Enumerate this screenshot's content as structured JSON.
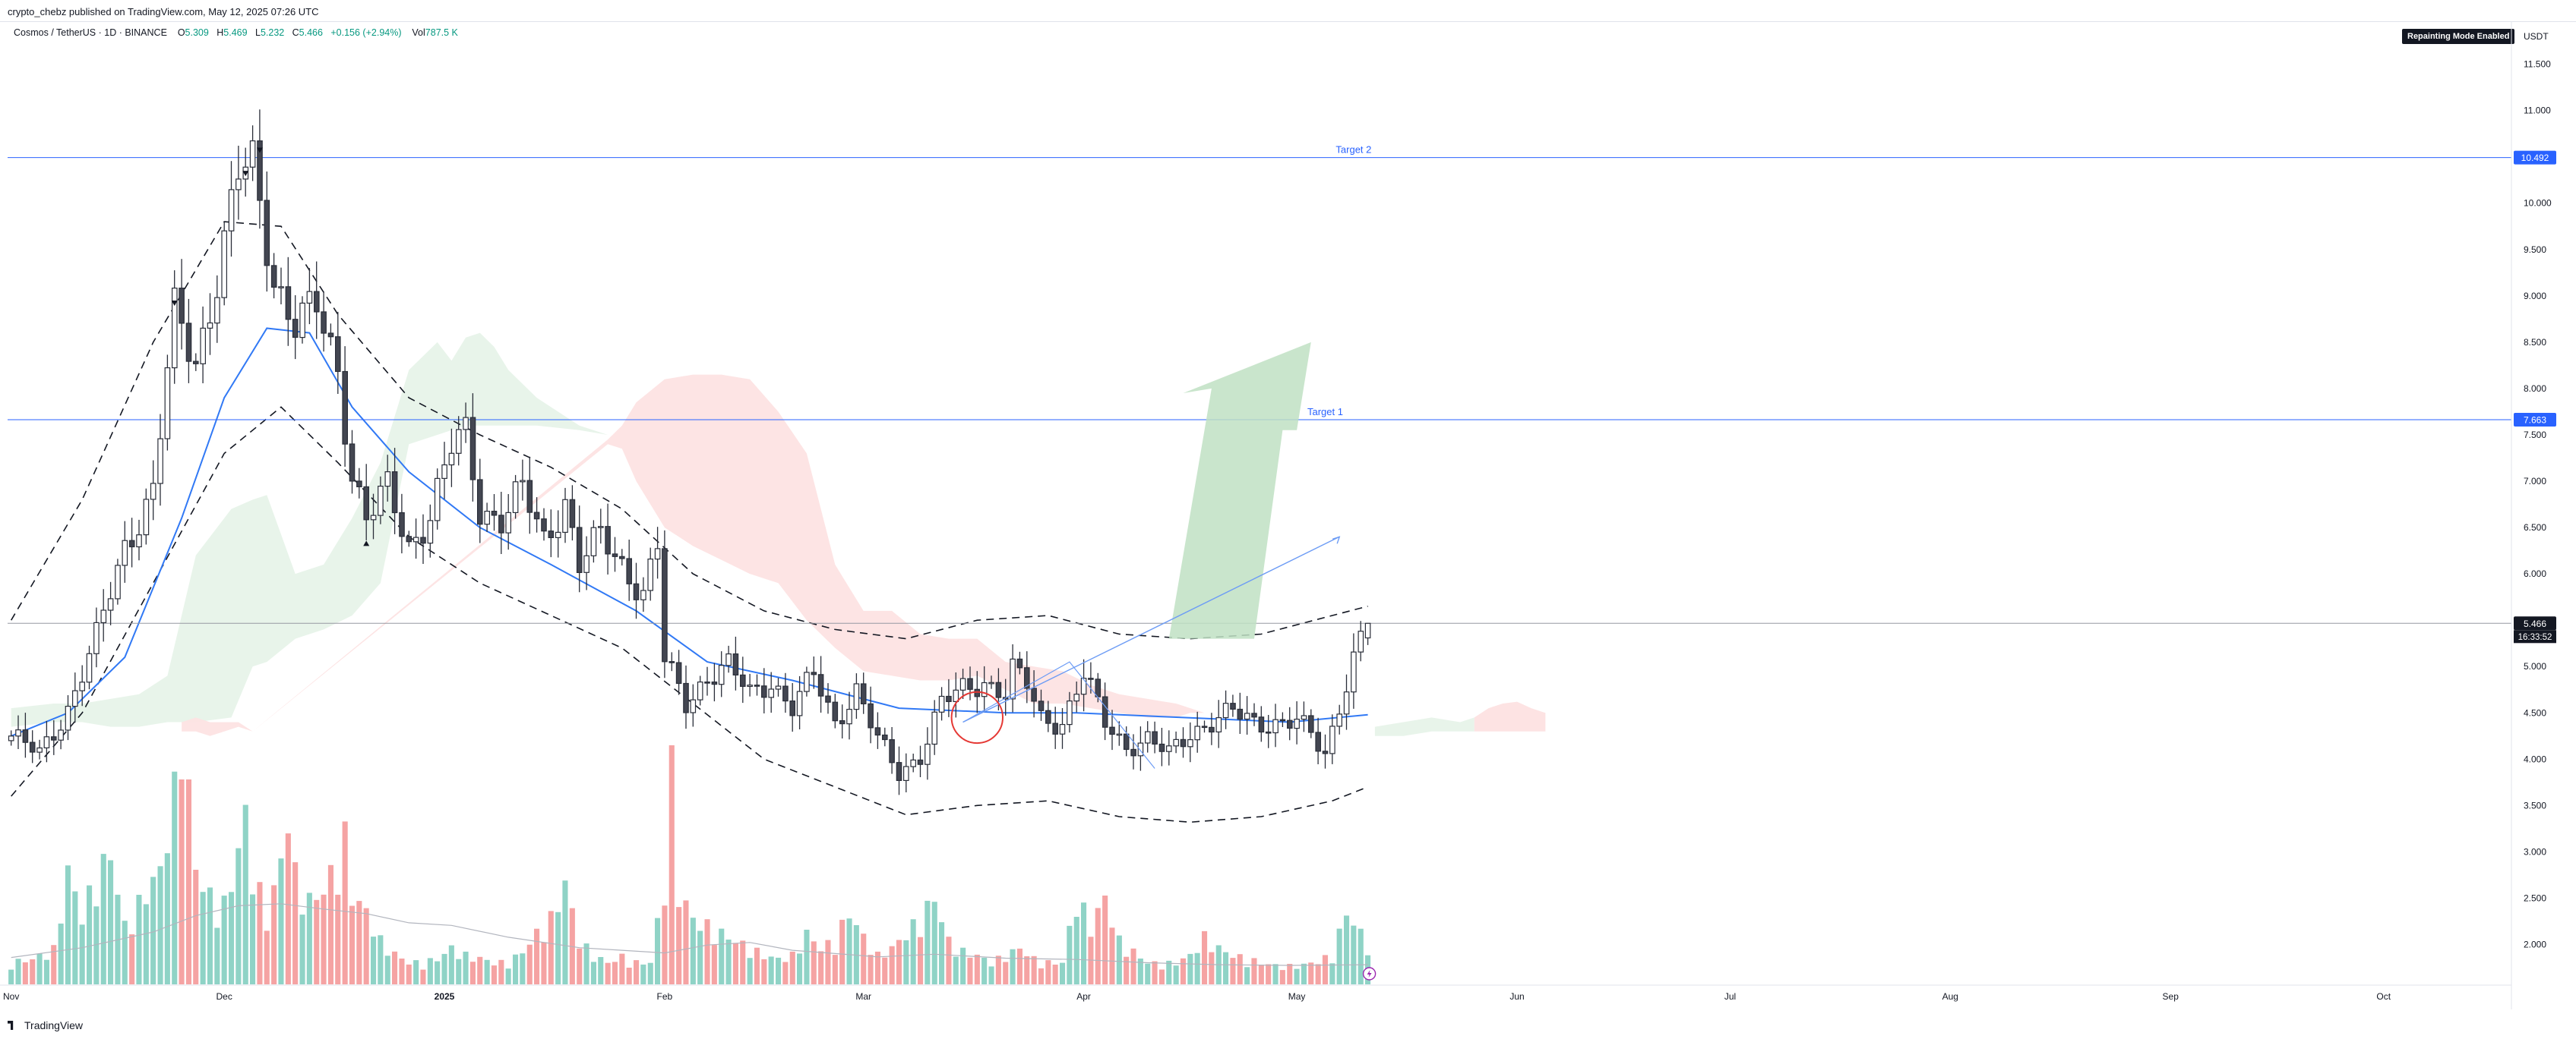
{
  "header": {
    "publisher": "crypto_chebz published on TradingView.com, May 12, 2025 07:26 UTC",
    "symbol": "Cosmos / TetherUS · 1D · BINANCE",
    "ohlc": [
      {
        "k": "O",
        "v": "5.309"
      },
      {
        "k": "H",
        "v": "5.469"
      },
      {
        "k": "L",
        "v": "5.232"
      },
      {
        "k": "C",
        "v": "5.466"
      }
    ],
    "change": "+0.156 (+2.94%)",
    "volume_label": "Vol",
    "volume_value": "787.5 K",
    "repainting_badge": "Repainting Mode Enabled"
  },
  "footer": {
    "brand": "TradingView"
  },
  "chart_data": {
    "type": "candlestick",
    "currency": "USDT",
    "ylim": [
      1.55,
      12.2
    ],
    "y_ticks": [
      "11.500",
      "11.000",
      "10.500",
      "10.000",
      "9.500",
      "9.000",
      "8.500",
      "8.000",
      "7.500",
      "7.000",
      "6.500",
      "6.000",
      "5.500",
      "5.000",
      "4.500",
      "4.000",
      "3.500",
      "3.000",
      "2.500",
      "2.000"
    ],
    "x_ticks": [
      {
        "label": "Nov",
        "day": 0
      },
      {
        "label": "Dec",
        "day": 30
      },
      {
        "label": "2025",
        "day": 61
      },
      {
        "label": "Feb",
        "day": 92
      },
      {
        "label": "Mar",
        "day": 120
      },
      {
        "label": "Apr",
        "day": 151
      },
      {
        "label": "May",
        "day": 181
      },
      {
        "label": "Jun",
        "day": 212
      },
      {
        "label": "Jul",
        "day": 242
      },
      {
        "label": "Aug",
        "day": 273
      },
      {
        "label": "Sep",
        "day": 304
      },
      {
        "label": "Oct",
        "day": 334
      }
    ],
    "xlim": [
      -0.5,
      352
    ],
    "close_anchors": [
      [
        0,
        4.25
      ],
      [
        4,
        4.05
      ],
      [
        8,
        4.55
      ],
      [
        12,
        5.3
      ],
      [
        16,
        6.3
      ],
      [
        20,
        6.9
      ],
      [
        23,
        8.8
      ],
      [
        26,
        8.3
      ],
      [
        29,
        9.2
      ],
      [
        32,
        10.3
      ],
      [
        34,
        10.4
      ],
      [
        37,
        9.2
      ],
      [
        40,
        8.7
      ],
      [
        43,
        8.85
      ],
      [
        46,
        8.2
      ],
      [
        48,
        7.1
      ],
      [
        50,
        6.6
      ],
      [
        53,
        6.9
      ],
      [
        56,
        6.3
      ],
      [
        59,
        6.65
      ],
      [
        62,
        7.35
      ],
      [
        64,
        7.5
      ],
      [
        66,
        6.7
      ],
      [
        69,
        6.6
      ],
      [
        72,
        6.9
      ],
      [
        75,
        6.35
      ],
      [
        78,
        6.8
      ],
      [
        80,
        6.1
      ],
      [
        83,
        6.4
      ],
      [
        86,
        6.1
      ],
      [
        89,
        5.8
      ],
      [
        91,
        6.3
      ],
      [
        92,
        5.05
      ],
      [
        95,
        4.6
      ],
      [
        98,
        4.9
      ],
      [
        101,
        5.0
      ],
      [
        104,
        4.7
      ],
      [
        107,
        4.85
      ],
      [
        110,
        4.55
      ],
      [
        113,
        4.9
      ],
      [
        116,
        4.4
      ],
      [
        119,
        4.75
      ],
      [
        122,
        4.2
      ],
      [
        125,
        3.85
      ],
      [
        128,
        4.05
      ],
      [
        131,
        4.6
      ],
      [
        134,
        4.75
      ],
      [
        137,
        4.85
      ],
      [
        140,
        4.7
      ],
      [
        141,
        4.95
      ],
      [
        143,
        4.8
      ],
      [
        145,
        4.45
      ],
      [
        148,
        4.4
      ],
      [
        151,
        4.9
      ],
      [
        154,
        4.4
      ],
      [
        157,
        4.15
      ],
      [
        160,
        4.2
      ],
      [
        163,
        4.05
      ],
      [
        166,
        4.3
      ],
      [
        169,
        4.4
      ],
      [
        172,
        4.5
      ],
      [
        175,
        4.4
      ],
      [
        178,
        4.4
      ],
      [
        181,
        4.4
      ],
      [
        183,
        4.25
      ],
      [
        185,
        4.05
      ],
      [
        187,
        4.6
      ],
      [
        189,
        5.1
      ],
      [
        190,
        5.3
      ],
      [
        191,
        5.466
      ]
    ],
    "series": [
      {
        "name": "MA(20)",
        "color": "#3179f5",
        "x": [
          0,
          8,
          16,
          24,
          30,
          36,
          42,
          48,
          56,
          66,
          76,
          88,
          98,
          110,
          125,
          140,
          150,
          165,
          180,
          191
        ],
        "y": [
          4.25,
          4.5,
          5.1,
          6.6,
          7.9,
          8.65,
          8.6,
          7.8,
          7.1,
          6.5,
          6.1,
          5.6,
          5.05,
          4.85,
          4.55,
          4.5,
          4.5,
          4.45,
          4.4,
          4.48
        ]
      },
      {
        "name": "Envelope upper",
        "color": "#131722",
        "x": [
          0,
          10,
          20,
          30,
          38,
          46,
          56,
          66,
          76,
          86,
          96,
          106,
          116,
          126,
          136,
          146,
          156,
          166,
          176,
          186,
          191
        ],
        "y": [
          5.5,
          6.8,
          8.5,
          9.8,
          9.75,
          8.8,
          7.9,
          7.5,
          7.15,
          6.7,
          6.0,
          5.6,
          5.4,
          5.3,
          5.5,
          5.55,
          5.35,
          5.3,
          5.35,
          5.55,
          5.65
        ]
      },
      {
        "name": "Envelope lower",
        "color": "#131722",
        "x": [
          0,
          10,
          20,
          30,
          38,
          46,
          56,
          66,
          76,
          86,
          96,
          106,
          116,
          126,
          136,
          146,
          156,
          166,
          176,
          186,
          191
        ],
        "y": [
          3.6,
          4.5,
          5.9,
          7.3,
          7.8,
          7.2,
          6.4,
          5.9,
          5.55,
          5.2,
          4.6,
          4.0,
          3.7,
          3.4,
          3.5,
          3.55,
          3.38,
          3.32,
          3.38,
          3.55,
          3.7
        ]
      },
      {
        "name": "Cloud green upper",
        "color": "#e7f3e9",
        "x": [
          0,
          6,
          10,
          14,
          18,
          22,
          26,
          31,
          34,
          36,
          40,
          44,
          48,
          52,
          56,
          60,
          62,
          64,
          66,
          68,
          70,
          74,
          80,
          84
        ],
        "y": [
          4.55,
          4.6,
          4.6,
          4.65,
          4.7,
          4.9,
          6.2,
          6.7,
          6.8,
          6.85,
          6.0,
          6.1,
          6.6,
          7.2,
          8.2,
          8.5,
          8.3,
          8.55,
          8.6,
          8.45,
          8.2,
          7.9,
          7.6,
          7.5
        ]
      },
      {
        "name": "Cloud green lower",
        "color": "#e7f3e9",
        "x": [
          0,
          6,
          10,
          14,
          18,
          22,
          26,
          31,
          34,
          36,
          40,
          44,
          48,
          52,
          56,
          60,
          62,
          64,
          66,
          68,
          70,
          74,
          80,
          84
        ],
        "y": [
          4.35,
          4.4,
          4.4,
          4.35,
          4.35,
          4.4,
          4.4,
          4.45,
          5.0,
          5.05,
          5.3,
          5.4,
          5.55,
          5.9,
          7.4,
          7.5,
          7.55,
          7.6,
          7.6,
          7.6,
          7.6,
          7.6,
          7.55,
          7.5
        ]
      },
      {
        "name": "Cloud red upper",
        "color": "#fde3e3",
        "x": [
          24,
          26,
          28,
          30,
          32,
          34,
          84,
          86,
          88,
          92,
          96,
          100,
          104,
          108,
          112,
          116,
          120,
          124,
          128,
          132,
          136,
          140,
          144,
          148,
          152,
          156,
          160,
          164,
          166,
          168
        ],
        "y": [
          4.4,
          4.45,
          4.4,
          4.4,
          4.4,
          4.3,
          7.45,
          7.6,
          7.85,
          8.1,
          8.15,
          8.15,
          8.1,
          7.75,
          7.3,
          6.1,
          5.6,
          5.6,
          5.35,
          5.3,
          5.3,
          5.05,
          5.0,
          4.95,
          4.8,
          4.7,
          4.65,
          4.6,
          4.55,
          4.5
        ]
      },
      {
        "name": "Cloud red lower",
        "color": "#fde3e3",
        "x": [
          24,
          26,
          28,
          30,
          32,
          34,
          84,
          86,
          88,
          92,
          96,
          100,
          104,
          108,
          112,
          116,
          120,
          124,
          128,
          132,
          136,
          140,
          144,
          148,
          152,
          156,
          160,
          164,
          166,
          168
        ],
        "y": [
          4.3,
          4.3,
          4.25,
          4.3,
          4.35,
          4.3,
          7.4,
          7.35,
          7.0,
          6.5,
          6.3,
          6.15,
          6.0,
          5.9,
          5.5,
          5.2,
          4.95,
          4.9,
          4.85,
          4.85,
          4.9,
          4.75,
          4.6,
          4.6,
          4.55,
          4.5,
          4.45,
          4.45,
          4.5,
          4.5
        ]
      },
      {
        "name": "Future cloud green upper",
        "color": "#e7f3e9",
        "x": [
          192,
          196,
          200,
          204,
          206
        ],
        "y": [
          4.35,
          4.4,
          4.45,
          4.4,
          4.45
        ]
      },
      {
        "name": "Future cloud green lower",
        "color": "#e7f3e9",
        "x": [
          192,
          196,
          200,
          204,
          206
        ],
        "y": [
          4.25,
          4.25,
          4.3,
          4.3,
          4.3
        ]
      },
      {
        "name": "Future cloud red",
        "color": "#fde3e3",
        "x": [
          206,
          208,
          210,
          212,
          214,
          216
        ],
        "y": [
          4.45,
          4.55,
          4.6,
          4.62,
          4.55,
          4.5
        ]
      },
      {
        "name": "Volume MA",
        "color": "#b2b5be",
        "x": [
          0,
          10,
          20,
          26,
          32,
          38,
          44,
          50,
          56,
          62,
          70,
          80,
          86,
          92,
          98,
          104,
          110,
          116,
          122,
          130,
          140,
          150,
          160,
          170,
          180,
          191
        ],
        "y": [
          410,
          560,
          800,
          1050,
          1200,
          1230,
          1150,
          1080,
          940,
          900,
          720,
          560,
          520,
          480,
          600,
          640,
          520,
          470,
          420,
          460,
          400,
          380,
          330,
          300,
          290,
          300
        ]
      }
    ],
    "volume": {
      "max_plotted": 3650,
      "anchors": [
        [
          0,
          300
        ],
        [
          3,
          350
        ],
        [
          6,
          480
        ],
        [
          8,
          1560
        ],
        [
          10,
          950
        ],
        [
          12,
          1480
        ],
        [
          14,
          1800
        ],
        [
          16,
          800
        ],
        [
          18,
          1100
        ],
        [
          20,
          1450
        ],
        [
          21,
          1550
        ],
        [
          22,
          2200
        ],
        [
          23,
          2600
        ],
        [
          24,
          3650
        ],
        [
          26,
          1600
        ],
        [
          28,
          1200
        ],
        [
          30,
          1100
        ],
        [
          31,
          1400
        ],
        [
          32,
          1900
        ],
        [
          33,
          2300
        ],
        [
          34,
          1600
        ],
        [
          36,
          900
        ],
        [
          38,
          1700
        ],
        [
          39,
          2400
        ],
        [
          40,
          1500
        ],
        [
          42,
          1150
        ],
        [
          44,
          1300
        ],
        [
          46,
          1700
        ],
        [
          47,
          2000
        ],
        [
          48,
          1250
        ],
        [
          50,
          1000
        ],
        [
          52,
          600
        ],
        [
          54,
          420
        ],
        [
          56,
          300
        ],
        [
          58,
          300
        ],
        [
          60,
          350
        ],
        [
          62,
          500
        ],
        [
          64,
          400
        ],
        [
          66,
          360
        ],
        [
          68,
          300
        ],
        [
          70,
          300
        ],
        [
          72,
          450
        ],
        [
          74,
          700
        ],
        [
          76,
          900
        ],
        [
          78,
          1400
        ],
        [
          80,
          600
        ],
        [
          82,
          400
        ],
        [
          84,
          300
        ],
        [
          86,
          380
        ],
        [
          88,
          300
        ],
        [
          90,
          300
        ],
        [
          92,
          1400
        ],
        [
          93,
          3650
        ],
        [
          94,
          1300
        ],
        [
          96,
          900
        ],
        [
          98,
          800
        ],
        [
          100,
          700
        ],
        [
          102,
          600
        ],
        [
          104,
          500
        ],
        [
          106,
          400
        ],
        [
          108,
          350
        ],
        [
          110,
          400
        ],
        [
          112,
          700
        ],
        [
          114,
          500
        ],
        [
          116,
          600
        ],
        [
          118,
          1000
        ],
        [
          120,
          650
        ],
        [
          122,
          400
        ],
        [
          124,
          500
        ],
        [
          126,
          700
        ],
        [
          128,
          900
        ],
        [
          130,
          1200
        ],
        [
          132,
          600
        ],
        [
          134,
          450
        ],
        [
          136,
          400
        ],
        [
          138,
          300
        ],
        [
          140,
          400
        ],
        [
          142,
          500
        ],
        [
          144,
          350
        ],
        [
          146,
          300
        ],
        [
          148,
          300
        ],
        [
          150,
          1200
        ],
        [
          152,
          800
        ],
        [
          154,
          1200
        ],
        [
          156,
          600
        ],
        [
          158,
          450
        ],
        [
          160,
          300
        ],
        [
          162,
          280
        ],
        [
          164,
          300
        ],
        [
          166,
          400
        ],
        [
          168,
          650
        ],
        [
          170,
          500
        ],
        [
          172,
          400
        ],
        [
          174,
          350
        ],
        [
          176,
          300
        ],
        [
          178,
          260
        ],
        [
          180,
          250
        ],
        [
          182,
          270
        ],
        [
          184,
          320
        ],
        [
          186,
          400
        ],
        [
          188,
          1000
        ],
        [
          190,
          700
        ],
        [
          191,
          550
        ]
      ]
    },
    "volume_markers": [
      {
        "text": "Target 2",
        "y": 10.492,
        "label_day": 189
      },
      {
        "text": "Target 1",
        "y": 7.663,
        "label_day": 185
      }
    ],
    "price_labels": [
      {
        "text": "10.492",
        "y": 10.492,
        "color": "#2962ff"
      },
      {
        "text": "7.663",
        "y": 7.663,
        "color": "#2962ff"
      },
      {
        "text": "5.466",
        "y": 5.466,
        "color": "#131722"
      }
    ],
    "countdown": "16:33:52",
    "drawings": {
      "arrow_up": {
        "base_left": [
          163,
          5.3
        ],
        "base_right": [
          175,
          5.3
        ],
        "head_left": [
          169,
          8.0
        ],
        "head_right": [
          181,
          7.55
        ],
        "tip": [
          183,
          8.5
        ],
        "color": "#bfe0c3"
      },
      "projection_line": {
        "from": [
          134,
          4.4
        ],
        "to": [
          187,
          6.4
        ],
        "color": "#6d9cf5"
      },
      "projection_points": [
        [
          134,
          4.4
        ],
        [
          149,
          5.05
        ],
        [
          161,
          3.9
        ]
      ],
      "circle": {
        "center": [
          136,
          4.45
        ],
        "r_days": 3.6,
        "color": "#e53935"
      },
      "fractal_down": [
        [
          23,
          8.9
        ],
        [
          33,
          10.3
        ],
        [
          35,
          10.55
        ]
      ],
      "fractal_up": [
        [
          50,
          6.35
        ]
      ]
    }
  }
}
